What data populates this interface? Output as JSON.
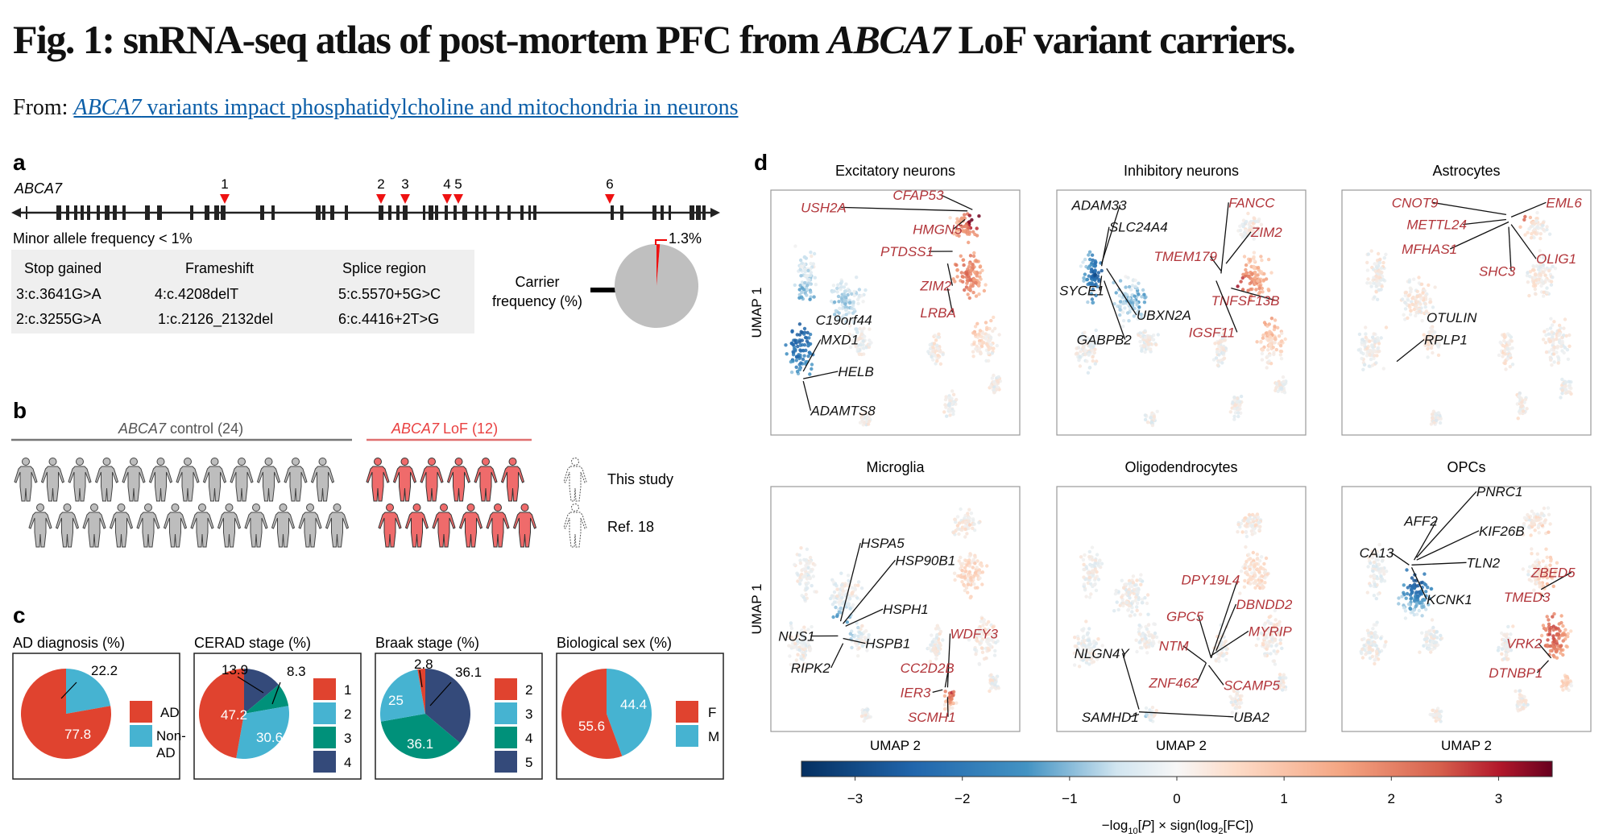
{
  "figure": {
    "title_prefix": "Fig. 1: snRNA-seq atlas of post-mortem PFC from ",
    "title_gene": "ABCA7",
    "title_suffix": " LoF variant carriers.",
    "from_label": "From: ",
    "link_gene": "ABCA7",
    "link_rest": " variants impact phosphatidylcholine and mitochondria in neurons"
  },
  "panel_a": {
    "letter": "a",
    "gene": "ABCA7",
    "maf_label": "Minor allele frequency < 1%",
    "variant_markers": [
      "1",
      "2",
      "3",
      "4",
      "5",
      "6"
    ],
    "table": {
      "headers": [
        "Stop gained",
        "Frameshift",
        "Splice region"
      ],
      "rows": [
        [
          "3:c.3641G>A",
          "4:c.4208delT",
          "5:c.5570+5G>C"
        ],
        [
          "2:c.3255G>A",
          "1:c.2126_2132del",
          "6:c.4416+2T>G"
        ]
      ]
    },
    "carrier_label_line1": "Carrier",
    "carrier_label_line2": "frequency (%)",
    "carrier_pct": 1.3,
    "carrier_pct_label": "1.3%"
  },
  "panel_b": {
    "letter": "b",
    "control_gene": "ABCA7",
    "control_label": " control (24)",
    "lof_gene": "ABCA7",
    "lof_label": " LoF (12)",
    "rows": [
      {
        "label": "This study",
        "control": 12,
        "lof": 6
      },
      {
        "label": "Ref. 18",
        "control": 12,
        "lof": 6
      }
    ]
  },
  "panel_c": {
    "letter": "c"
  },
  "panel_d": {
    "letter": "d",
    "x_axis_label": "UMAP 2",
    "y_axis_label": "UMAP 1",
    "colorbar": {
      "min": -3.5,
      "max": 3.5,
      "ticks": [
        "−3",
        "−2",
        "−1",
        "0",
        "1",
        "2",
        "3"
      ],
      "tick_values": [
        -3,
        -2,
        -1,
        0,
        1,
        2,
        3
      ],
      "label_prefix": "−log",
      "label_sub1": "10",
      "label_mid1": "[",
      "label_p": "P",
      "label_mid2": "] × sign(log",
      "label_sub2": "2",
      "label_end": "[FC])"
    }
  },
  "colors": {
    "red": "#e0432f",
    "cyan": "#46b3d1",
    "teal": "#00917a",
    "navy": "#344a7a",
    "pie_grey": "#bfbfbf",
    "marker_red": "#ee1111",
    "lof_red": "#ef6b6b",
    "control_grey": "#bdbdbd",
    "gene_red": "#b2353a",
    "link_blue": "#0b5ea8"
  },
  "chart_data": [
    {
      "type": "pie",
      "title": "AD diagnosis (%)",
      "categories": [
        "AD",
        "Non-AD"
      ],
      "values": [
        77.8,
        22.2
      ],
      "labels": [
        "77.8",
        "22.2"
      ],
      "legend": [
        "AD",
        "Non-AD"
      ],
      "legend_placement": "right"
    },
    {
      "type": "pie",
      "title": "CERAD stage (%)",
      "categories": [
        "1",
        "2",
        "3",
        "4"
      ],
      "values": [
        47.2,
        30.6,
        8.3,
        13.9
      ],
      "labels": [
        "47.2",
        "30.6",
        "8.3",
        "13.9"
      ],
      "legend": [
        "1",
        "2",
        "3",
        "4"
      ],
      "legend_placement": "right"
    },
    {
      "type": "pie",
      "title": "Braak stage (%)",
      "categories": [
        "2",
        "3",
        "4",
        "5"
      ],
      "values": [
        2.8,
        25,
        36.1,
        36.1
      ],
      "labels": [
        "2.8",
        "25",
        "36.1",
        "36.1"
      ],
      "legend": [
        "2",
        "3",
        "4",
        "5"
      ],
      "legend_placement": "right"
    },
    {
      "type": "pie",
      "title": "Biological sex (%)",
      "categories": [
        "F",
        "M"
      ],
      "values": [
        55.6,
        44.4
      ],
      "labels": [
        "55.6",
        "44.4"
      ],
      "legend": [
        "F",
        "M"
      ],
      "legend_placement": "right"
    },
    {
      "type": "pie",
      "title": "Carrier frequency (%)",
      "categories": [
        "carrier",
        "non-carrier"
      ],
      "values": [
        1.3,
        98.7
      ],
      "labels": [
        "1.3%"
      ]
    },
    {
      "type": "scatter",
      "title": "UMAP per cell type, colored by −log10[P] × sign(log2[FC])",
      "xlabel": "UMAP 2",
      "ylabel": "UMAP 1",
      "color_range": [
        -3.5,
        3.5
      ],
      "panels": [
        {
          "title": "Excitatory neurons",
          "up_genes": [
            "USH2A",
            "CFAP53",
            "HMGN5",
            "PTDSS1",
            "ZIM2",
            "LRBA"
          ],
          "down_genes": [
            "C19orf44",
            "MXD1",
            "HELB",
            "ADAMTS8"
          ]
        },
        {
          "title": "Inhibitory neurons",
          "up_genes": [
            "FANCC",
            "ZIM2",
            "TMEM179",
            "TNFSF13B",
            "IGSF11"
          ],
          "down_genes": [
            "ADAM33",
            "SLC24A4",
            "SYCE1",
            "UBXN2A",
            "GABPB2"
          ]
        },
        {
          "title": "Astrocytes",
          "up_genes": [
            "CNOT9",
            "EML6",
            "METTL24",
            "MFHAS1",
            "OLIG1",
            "SHC3"
          ],
          "down_genes": [
            "OTULIN",
            "RPLP1"
          ]
        },
        {
          "title": "Microglia",
          "up_genes": [
            "WDFY3",
            "CC2D2B",
            "IER3",
            "SCMH1"
          ],
          "down_genes": [
            "HSPA5",
            "HSP90B1",
            "HSPH1",
            "NUS1",
            "HSPB1",
            "RIPK2"
          ]
        },
        {
          "title": "Oligodendrocytes",
          "up_genes": [
            "DPY19L4",
            "DBNDD2",
            "GPC5",
            "MYRIP",
            "NTM",
            "ZNF462",
            "SCAMP5"
          ],
          "down_genes": [
            "NLGN4Y",
            "SAMHD1",
            "UBA2"
          ]
        },
        {
          "title": "OPCs",
          "up_genes": [
            "ZBED5",
            "TMED3",
            "VRK2",
            "DTNBP1"
          ],
          "down_genes": [
            "PNRC1",
            "AFF2",
            "KIF26B",
            "CA13",
            "TLN2",
            "KCNK1"
          ]
        }
      ]
    }
  ]
}
